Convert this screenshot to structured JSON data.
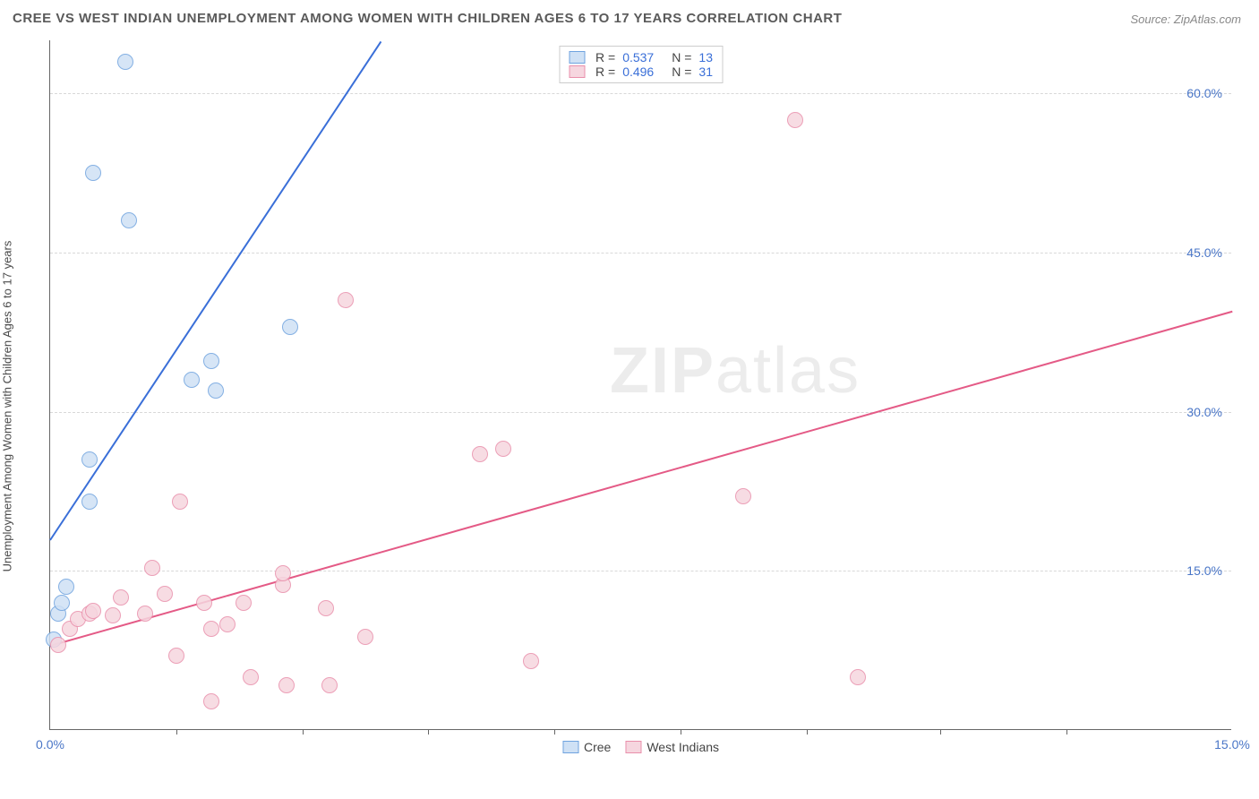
{
  "title": "CREE VS WEST INDIAN UNEMPLOYMENT AMONG WOMEN WITH CHILDREN AGES 6 TO 17 YEARS CORRELATION CHART",
  "source_label": "Source: ZipAtlas.com",
  "ylabel": "Unemployment Among Women with Children Ages 6 to 17 years",
  "watermark_bold": "ZIP",
  "watermark_rest": "atlas",
  "chart": {
    "type": "scatter",
    "background_color": "#ffffff",
    "grid_color": "#d8d8d8",
    "axis_color": "#666666",
    "text_color": "#4a4a4a",
    "tick_label_color": "#4a76c7",
    "marker_radius": 9,
    "marker_opacity": 0.85,
    "line_width": 2,
    "x_range": [
      0,
      15
    ],
    "y_range": [
      0,
      65
    ],
    "y_ticks": [
      15,
      30,
      45,
      60
    ],
    "y_tick_labels": [
      "15.0%",
      "30.0%",
      "45.0%",
      "60.0%"
    ],
    "x_tick_at": [
      0,
      15
    ],
    "x_tick_labels": [
      "0.0%",
      "15.0%"
    ],
    "x_minor_ticks": [
      1.6,
      3.2,
      4.8,
      6.4,
      8.0,
      9.6,
      11.3,
      12.9
    ],
    "series": [
      {
        "name": "Cree",
        "color_fill": "#cfe1f5",
        "color_stroke": "#6fa3df",
        "line_color": "#3a6fd8",
        "r_value": "0.537",
        "n_value": "13",
        "trend": {
          "x1": 0.0,
          "y1": 18.0,
          "x2": 4.2,
          "y2": 65.0
        },
        "points": [
          {
            "x": 0.05,
            "y": 8.5
          },
          {
            "x": 0.1,
            "y": 11.0
          },
          {
            "x": 0.15,
            "y": 12.0
          },
          {
            "x": 0.2,
            "y": 13.5
          },
          {
            "x": 0.5,
            "y": 21.5
          },
          {
            "x": 0.5,
            "y": 25.5
          },
          {
            "x": 0.55,
            "y": 52.5
          },
          {
            "x": 0.95,
            "y": 63.0
          },
          {
            "x": 1.0,
            "y": 48.0
          },
          {
            "x": 1.8,
            "y": 33.0
          },
          {
            "x": 2.05,
            "y": 34.8
          },
          {
            "x": 2.1,
            "y": 32.0
          },
          {
            "x": 3.05,
            "y": 38.0
          }
        ]
      },
      {
        "name": "West Indians",
        "color_fill": "#f6d6df",
        "color_stroke": "#e98fab",
        "line_color": "#e45a86",
        "r_value": "0.496",
        "n_value": "31",
        "trend": {
          "x1": 0.0,
          "y1": 8.0,
          "x2": 15.0,
          "y2": 39.5
        },
        "points": [
          {
            "x": 0.1,
            "y": 8.0
          },
          {
            "x": 0.25,
            "y": 9.5
          },
          {
            "x": 0.35,
            "y": 10.5
          },
          {
            "x": 0.5,
            "y": 11.0
          },
          {
            "x": 0.55,
            "y": 11.2
          },
          {
            "x": 0.8,
            "y": 10.8
          },
          {
            "x": 0.9,
            "y": 12.5
          },
          {
            "x": 1.2,
            "y": 11.0
          },
          {
            "x": 1.3,
            "y": 15.3
          },
          {
            "x": 1.45,
            "y": 12.8
          },
          {
            "x": 1.6,
            "y": 7.0
          },
          {
            "x": 1.65,
            "y": 21.5
          },
          {
            "x": 1.95,
            "y": 12.0
          },
          {
            "x": 2.05,
            "y": 9.5
          },
          {
            "x": 2.05,
            "y": 2.7
          },
          {
            "x": 2.25,
            "y": 10.0
          },
          {
            "x": 2.45,
            "y": 12.0
          },
          {
            "x": 2.55,
            "y": 5.0
          },
          {
            "x": 2.95,
            "y": 13.7
          },
          {
            "x": 2.95,
            "y": 14.8
          },
          {
            "x": 3.0,
            "y": 4.2
          },
          {
            "x": 3.5,
            "y": 11.5
          },
          {
            "x": 3.55,
            "y": 4.2
          },
          {
            "x": 3.75,
            "y": 40.5
          },
          {
            "x": 4.0,
            "y": 8.8
          },
          {
            "x": 5.45,
            "y": 26.0
          },
          {
            "x": 5.75,
            "y": 26.5
          },
          {
            "x": 6.1,
            "y": 6.5
          },
          {
            "x": 8.8,
            "y": 22.0
          },
          {
            "x": 9.45,
            "y": 57.5
          },
          {
            "x": 10.25,
            "y": 5.0
          }
        ]
      }
    ]
  }
}
